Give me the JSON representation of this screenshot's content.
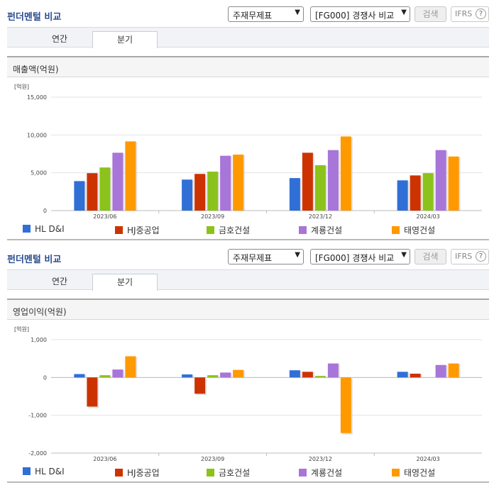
{
  "header": {
    "title": "펀더멘털 비교",
    "select_type": "주재무제표",
    "select_group": "[FG000] 경쟁사 비교",
    "search_label": "검색",
    "ifrs_label": "IFRS",
    "help_glyph": "?",
    "dropdown_glyph": "▼"
  },
  "tabs": [
    {
      "label": "연간",
      "active": false
    },
    {
      "label": "분기",
      "active": true
    }
  ],
  "legend": [
    {
      "name": "HL D&I",
      "color": "#2f6fd6"
    },
    {
      "name": "HJ중공업",
      "color": "#cc3300"
    },
    {
      "name": "금호건설",
      "color": "#8bc21c"
    },
    {
      "name": "계룡건설",
      "color": "#a875d8"
    },
    {
      "name": "태영건설",
      "color": "#ff9900"
    }
  ],
  "chart_data": [
    {
      "type": "bar",
      "title": "매출액(억원)",
      "unit": "[억원]",
      "categories": [
        "2023/06",
        "2023/09",
        "2023/12",
        "2024/03"
      ],
      "ylim": [
        0,
        15000
      ],
      "yticks": [
        0,
        5000,
        10000,
        15000
      ],
      "ytick_labels": [
        "0",
        "5,000",
        "10,000",
        "15,000"
      ],
      "grid": true,
      "legend_position": "bottom",
      "series": [
        {
          "name": "HL D&I",
          "color": "#2f6fd6",
          "values": [
            3900,
            4100,
            4300,
            4000
          ]
        },
        {
          "name": "HJ중공업",
          "color": "#cc3300",
          "values": [
            4950,
            4850,
            7650,
            4650
          ]
        },
        {
          "name": "금호건설",
          "color": "#8bc21c",
          "values": [
            5700,
            5150,
            6000,
            4950
          ]
        },
        {
          "name": "계룡건설",
          "color": "#a875d8",
          "values": [
            7650,
            7250,
            8000,
            8000
          ]
        },
        {
          "name": "태영건설",
          "color": "#ff9900",
          "values": [
            9150,
            7400,
            9800,
            7150
          ]
        }
      ]
    },
    {
      "type": "bar",
      "title": "영업이익(억원)",
      "unit": "[억원]",
      "categories": [
        "2023/06",
        "2023/09",
        "2023/12",
        "2024/03"
      ],
      "ylim": [
        -2000,
        1000
      ],
      "yticks": [
        -2000,
        -1000,
        0,
        1000
      ],
      "ytick_labels": [
        "-2,000",
        "-1,000",
        "0",
        "1,000"
      ],
      "grid": true,
      "legend_position": "bottom",
      "series": [
        {
          "name": "HL D&I",
          "color": "#2f6fd6",
          "values": [
            90,
            80,
            190,
            150
          ]
        },
        {
          "name": "HJ중공업",
          "color": "#cc3300",
          "values": [
            -770,
            -430,
            150,
            100
          ]
        },
        {
          "name": "금호건설",
          "color": "#8bc21c",
          "values": [
            60,
            60,
            40,
            0
          ]
        },
        {
          "name": "계룡건설",
          "color": "#a875d8",
          "values": [
            210,
            130,
            370,
            330
          ]
        },
        {
          "name": "태영건설",
          "color": "#ff9900",
          "values": [
            560,
            200,
            -1470,
            370
          ]
        }
      ]
    }
  ]
}
